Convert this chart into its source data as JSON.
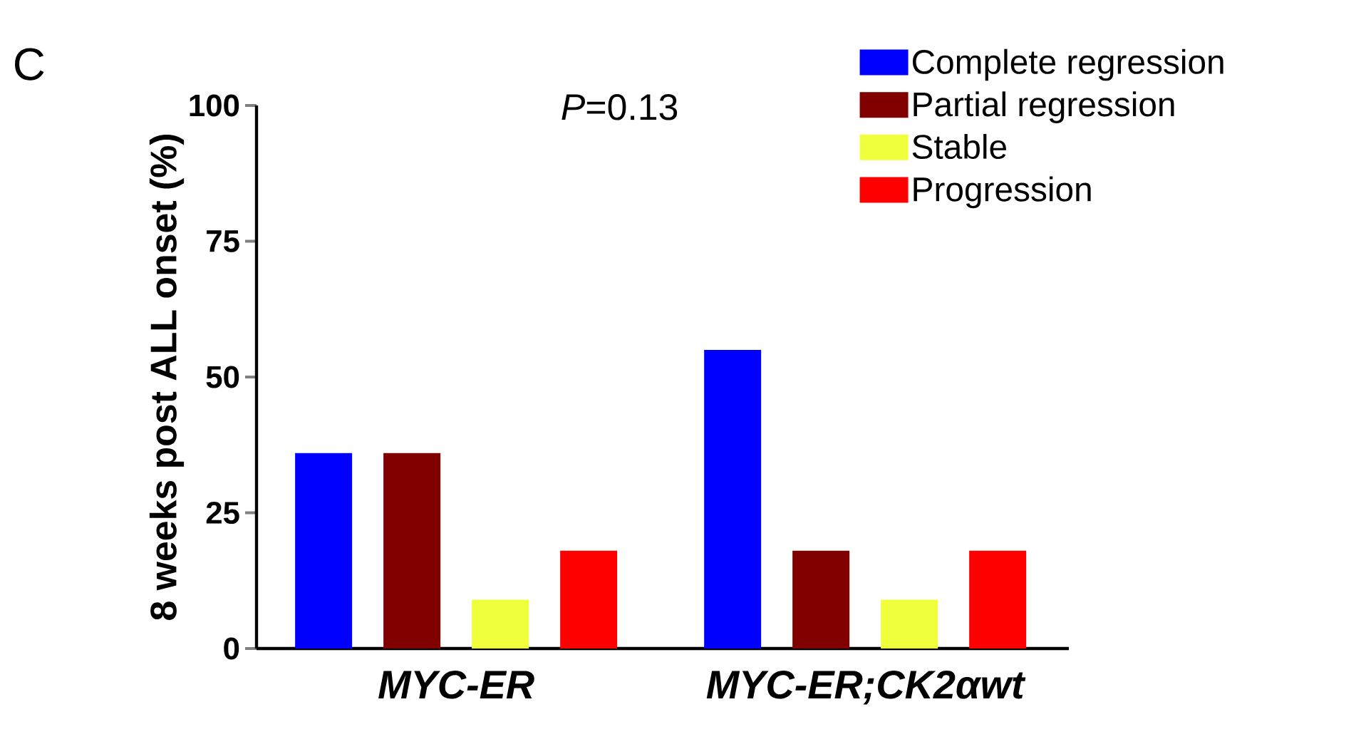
{
  "chart_data": {
    "type": "bar",
    "ylabel": "8 weeks post ALL onset (%)",
    "categories": [
      "MYC-ER",
      "MYC-ER;CK2αwt"
    ],
    "series": [
      {
        "name": "Complete regression",
        "color": "#0000ff",
        "values": [
          36,
          55
        ]
      },
      {
        "name": "Partial regression",
        "color": "#800000",
        "values": [
          36,
          18
        ]
      },
      {
        "name": "Stable",
        "color": "#f0ff3c",
        "values": [
          9,
          9
        ]
      },
      {
        "name": "Progression",
        "color": "#ff0000",
        "values": [
          18,
          18
        ]
      }
    ],
    "ylim": [
      0,
      100
    ],
    "yticks": [
      0,
      25,
      50,
      75,
      100
    ],
    "legend": "top right",
    "annotations": [
      "C",
      "*P*=0.13"
    ]
  }
}
